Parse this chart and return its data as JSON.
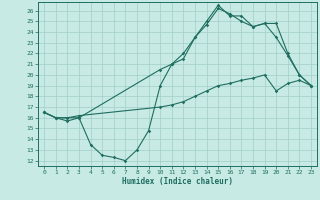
{
  "xlabel": "Humidex (Indice chaleur)",
  "xlim": [
    -0.5,
    23.5
  ],
  "ylim": [
    11.5,
    26.8
  ],
  "yticks": [
    12,
    13,
    14,
    15,
    16,
    17,
    18,
    19,
    20,
    21,
    22,
    23,
    24,
    25,
    26
  ],
  "xticks": [
    0,
    1,
    2,
    3,
    4,
    5,
    6,
    7,
    8,
    9,
    10,
    11,
    12,
    13,
    14,
    15,
    16,
    17,
    18,
    19,
    20,
    21,
    22,
    23
  ],
  "bg_color": "#c8eae4",
  "grid_color": "#a0cec6",
  "line_color": "#1e6e60",
  "line1_x": [
    0,
    1,
    2,
    3,
    4,
    5,
    6,
    7,
    8,
    9,
    10,
    11,
    12,
    13,
    14,
    15,
    16,
    17,
    18,
    19,
    20,
    21,
    22,
    23
  ],
  "line1_y": [
    16.5,
    16.0,
    15.7,
    16.0,
    13.5,
    12.5,
    12.3,
    12.0,
    13.0,
    14.8,
    19.0,
    21.0,
    21.5,
    23.5,
    24.7,
    26.2,
    25.7,
    25.0,
    24.5,
    24.8,
    23.5,
    21.8,
    20.0,
    19.0
  ],
  "line2_x": [
    0,
    1,
    2,
    3,
    10,
    11,
    12,
    13,
    14,
    15,
    16,
    17,
    18,
    19,
    20,
    21,
    22,
    23
  ],
  "line2_y": [
    16.5,
    16.0,
    16.0,
    16.0,
    20.5,
    21.0,
    22.0,
    23.5,
    25.0,
    26.5,
    25.5,
    25.5,
    24.5,
    24.8,
    24.8,
    22.0,
    20.0,
    19.0
  ],
  "line3_x": [
    0,
    1,
    2,
    3,
    10,
    11,
    12,
    13,
    14,
    15,
    16,
    17,
    18,
    19,
    20,
    21,
    22,
    23
  ],
  "line3_y": [
    16.5,
    16.0,
    16.0,
    16.2,
    17.0,
    17.2,
    17.5,
    18.0,
    18.5,
    19.0,
    19.2,
    19.5,
    19.7,
    20.0,
    18.5,
    19.2,
    19.5,
    19.0
  ]
}
